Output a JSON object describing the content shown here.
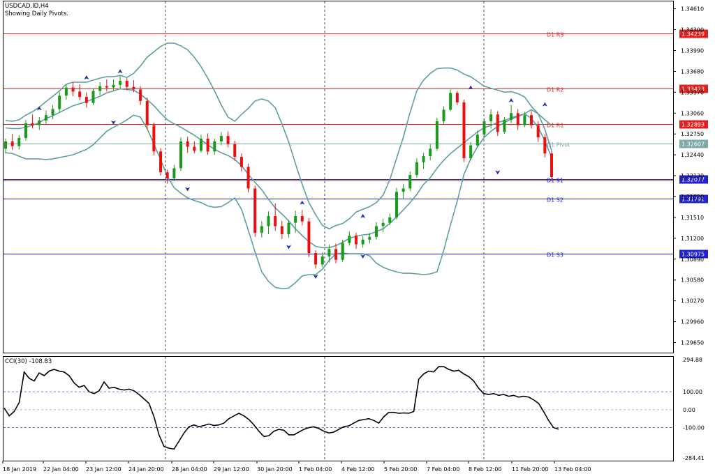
{
  "header": {
    "symbol": "USDCAD.ID,H4",
    "subtitle": "Showing Daily Pivots."
  },
  "indicator": {
    "label": "CCI(30) -108.83"
  },
  "chart_data": [
    {
      "type": "candlestick",
      "y_ticks": [
        "1.34610",
        "1.34300",
        "1.33990",
        "1.33680",
        "1.33370",
        "1.33060",
        "1.32750",
        "1.32440",
        "1.32130",
        "1.31820",
        "1.31510",
        "1.31200",
        "1.30890",
        "1.30580",
        "1.30270",
        "1.29960",
        "1.29650"
      ],
      "ylim": [
        1.295,
        1.3472
      ],
      "x_labels": [
        "18 Jan 2019",
        "22 Jan 04:00",
        "23 Jan 12:00",
        "24 Jan 20:00",
        "28 Jan 04:00",
        "29 Jan 12:00",
        "30 Jan 20:00",
        "1 Feb 04:00",
        "4 Feb 12:00",
        "5 Feb 20:00",
        "7 Feb 04:00",
        "8 Feb 12:00",
        "11 Feb 20:00",
        "13 Feb 04:00"
      ],
      "pivots": [
        {
          "name": "D1 R3",
          "value": "1.34239",
          "color": "#e02020"
        },
        {
          "name": "D1 R2",
          "value": "1.33423",
          "color": "#e02020"
        },
        {
          "name": "D1 R1",
          "value": "1.32893",
          "color": "#e02020"
        },
        {
          "name": "D1 Pivot",
          "value": "1.32607",
          "color": "#7fa9a9"
        },
        {
          "name": "D1 S1",
          "value": "1.32077",
          "color": "#2222cc"
        },
        {
          "name": "D1 S2",
          "value": "1.31791",
          "color": "#2222cc"
        },
        {
          "name": "D1 S3",
          "value": "1.30975",
          "color": "#2222cc"
        }
      ],
      "colors": {
        "up": "#1a9a1a",
        "down": "#e81010",
        "bands": "#5f9ea0",
        "fractal": "#2233aa"
      },
      "candles": [
        [
          1.3253,
          1.3268,
          1.3246,
          1.3264
        ],
        [
          1.3264,
          1.3275,
          1.3251,
          1.3257
        ],
        [
          1.3257,
          1.3273,
          1.3252,
          1.3269
        ],
        [
          1.3269,
          1.3296,
          1.3265,
          1.3291
        ],
        [
          1.3291,
          1.3304,
          1.3283,
          1.3288
        ],
        [
          1.3288,
          1.33,
          1.3281,
          1.3295
        ],
        [
          1.3295,
          1.331,
          1.329,
          1.3303
        ],
        [
          1.3303,
          1.3318,
          1.3297,
          1.3312
        ],
        [
          1.3312,
          1.3337,
          1.3308,
          1.3332
        ],
        [
          1.3332,
          1.3349,
          1.3326,
          1.3344
        ],
        [
          1.3344,
          1.3352,
          1.3331,
          1.3338
        ],
        [
          1.3338,
          1.3349,
          1.3325,
          1.333
        ],
        [
          1.333,
          1.3337,
          1.3314,
          1.3321
        ],
        [
          1.3321,
          1.3343,
          1.3318,
          1.3339
        ],
        [
          1.3339,
          1.3352,
          1.3333,
          1.3346
        ],
        [
          1.3346,
          1.3356,
          1.3338,
          1.3344
        ],
        [
          1.3344,
          1.3356,
          1.334,
          1.3348
        ],
        [
          1.3348,
          1.3361,
          1.3342,
          1.3354
        ],
        [
          1.3354,
          1.3358,
          1.334,
          1.3345
        ],
        [
          1.3345,
          1.3355,
          1.3337,
          1.3341
        ],
        [
          1.3341,
          1.3346,
          1.3318,
          1.3324
        ],
        [
          1.3324,
          1.3329,
          1.3282,
          1.3288
        ],
        [
          1.3288,
          1.3292,
          1.3243,
          1.3249
        ],
        [
          1.3249,
          1.3254,
          1.3213,
          1.3218
        ],
        [
          1.3218,
          1.3222,
          1.3201,
          1.3209
        ],
        [
          1.3209,
          1.3229,
          1.3205,
          1.3224
        ],
        [
          1.3224,
          1.327,
          1.322,
          1.3264
        ],
        [
          1.3264,
          1.3271,
          1.3247,
          1.3256
        ],
        [
          1.3256,
          1.3264,
          1.3246,
          1.325
        ],
        [
          1.325,
          1.3274,
          1.3247,
          1.3268
        ],
        [
          1.3268,
          1.3276,
          1.3244,
          1.3249
        ],
        [
          1.3249,
          1.3268,
          1.3244,
          1.3264
        ],
        [
          1.3264,
          1.3278,
          1.3258,
          1.3272
        ],
        [
          1.3272,
          1.3279,
          1.3255,
          1.326
        ],
        [
          1.326,
          1.3265,
          1.3235,
          1.3241
        ],
        [
          1.3241,
          1.3246,
          1.3219,
          1.3226
        ],
        [
          1.3226,
          1.3231,
          1.3188,
          1.3194
        ],
        [
          1.3194,
          1.3198,
          1.3122,
          1.3128
        ],
        [
          1.3128,
          1.3145,
          1.3121,
          1.3138
        ],
        [
          1.3138,
          1.316,
          1.3126,
          1.3153
        ],
        [
          1.3153,
          1.3172,
          1.3131,
          1.3138
        ],
        [
          1.3138,
          1.3146,
          1.3119,
          1.3126
        ],
        [
          1.3126,
          1.3147,
          1.3121,
          1.3143
        ],
        [
          1.3143,
          1.3161,
          1.3128,
          1.3153
        ],
        [
          1.3153,
          1.3162,
          1.3139,
          1.3145
        ],
        [
          1.3145,
          1.315,
          1.3092,
          1.3098
        ],
        [
          1.3098,
          1.3102,
          1.3075,
          1.3081
        ],
        [
          1.3081,
          1.3099,
          1.3077,
          1.3093
        ],
        [
          1.3093,
          1.3111,
          1.3084,
          1.3104
        ],
        [
          1.3104,
          1.3112,
          1.3083,
          1.3088
        ],
        [
          1.3088,
          1.3118,
          1.3085,
          1.3113
        ],
        [
          1.3113,
          1.313,
          1.3109,
          1.3124
        ],
        [
          1.3124,
          1.3128,
          1.3104,
          1.3111
        ],
        [
          1.3111,
          1.3123,
          1.3106,
          1.3118
        ],
        [
          1.3118,
          1.3128,
          1.3112,
          1.3122
        ],
        [
          1.3122,
          1.3144,
          1.3118,
          1.3138
        ],
        [
          1.3138,
          1.3149,
          1.3129,
          1.3143
        ],
        [
          1.3143,
          1.3157,
          1.314,
          1.3151
        ],
        [
          1.3151,
          1.3195,
          1.3148,
          1.3189
        ],
        [
          1.3189,
          1.3201,
          1.3178,
          1.3194
        ],
        [
          1.3194,
          1.3219,
          1.319,
          1.3214
        ],
        [
          1.3214,
          1.3239,
          1.321,
          1.3233
        ],
        [
          1.3233,
          1.3247,
          1.3223,
          1.3242
        ],
        [
          1.3242,
          1.326,
          1.3236,
          1.3253
        ],
        [
          1.3253,
          1.3299,
          1.325,
          1.3294
        ],
        [
          1.3294,
          1.3316,
          1.329,
          1.3311
        ],
        [
          1.3311,
          1.3341,
          1.3309,
          1.3336
        ],
        [
          1.3336,
          1.3339,
          1.3318,
          1.3322
        ],
        [
          1.3322,
          1.3326,
          1.3233,
          1.3239
        ],
        [
          1.3239,
          1.3263,
          1.3236,
          1.3258
        ],
        [
          1.3258,
          1.328,
          1.3255,
          1.3274
        ],
        [
          1.3274,
          1.3298,
          1.3271,
          1.3294
        ],
        [
          1.3294,
          1.3312,
          1.3283,
          1.3304
        ],
        [
          1.3304,
          1.3309,
          1.3272,
          1.3278
        ],
        [
          1.3278,
          1.33,
          1.3275,
          1.3296
        ],
        [
          1.3296,
          1.3318,
          1.3291,
          1.3306
        ],
        [
          1.3306,
          1.3312,
          1.3281,
          1.3288
        ],
        [
          1.3288,
          1.3308,
          1.3285,
          1.3303
        ],
        [
          1.3303,
          1.3309,
          1.3283,
          1.3288
        ],
        [
          1.3288,
          1.3294,
          1.3263,
          1.327
        ],
        [
          1.327,
          1.3275,
          1.324,
          1.3246
        ],
        [
          1.3246,
          1.325,
          1.3206,
          1.3211
        ]
      ],
      "upper_band": [
        1.3295,
        1.3294,
        1.3296,
        1.3303,
        1.3308,
        1.3315,
        1.3323,
        1.3331,
        1.3339,
        1.3349,
        1.3352,
        1.3352,
        1.3352,
        1.3355,
        1.3358,
        1.336,
        1.336,
        1.3362,
        1.3359,
        1.3365,
        1.3376,
        1.3389,
        1.3397,
        1.3405,
        1.341,
        1.341,
        1.3406,
        1.34,
        1.3389,
        1.3375,
        1.3358,
        1.3339,
        1.3318,
        1.33,
        1.3294,
        1.3304,
        1.3313,
        1.3324,
        1.3327,
        1.3324,
        1.3314,
        1.329,
        1.3263,
        1.3231,
        1.32,
        1.3173,
        1.3155,
        1.3139,
        1.3134,
        1.3139,
        1.3142,
        1.3149,
        1.3159,
        1.3163,
        1.3167,
        1.3173,
        1.3184,
        1.3207,
        1.3239,
        1.327,
        1.3307,
        1.3339,
        1.3355,
        1.3365,
        1.3372,
        1.3373,
        1.3373,
        1.337,
        1.3364,
        1.336,
        1.3353,
        1.3346,
        1.3343,
        1.334,
        1.3337,
        1.3338,
        1.3335,
        1.333,
        1.3316,
        1.3305,
        1.3296,
        1.3288
      ],
      "middle_band": [
        1.3284,
        1.3283,
        1.3283,
        1.3285,
        1.3288,
        1.3292,
        1.3298,
        1.3302,
        1.3307,
        1.3312,
        1.3317,
        1.332,
        1.3323,
        1.3327,
        1.3331,
        1.3336,
        1.3339,
        1.3342,
        1.3341,
        1.334,
        1.3334,
        1.3326,
        1.3317,
        1.3306,
        1.3296,
        1.329,
        1.3285,
        1.3279,
        1.3273,
        1.3266,
        1.3259,
        1.3252,
        1.3247,
        1.3243,
        1.3237,
        1.3228,
        1.3215,
        1.3203,
        1.3192,
        1.3178,
        1.3165,
        1.3156,
        1.3146,
        1.3134,
        1.3124,
        1.3115,
        1.3108,
        1.3106,
        1.3106,
        1.3109,
        1.3114,
        1.312,
        1.3123,
        1.3125,
        1.3126,
        1.313,
        1.3134,
        1.3142,
        1.3152,
        1.3162,
        1.3173,
        1.3185,
        1.32,
        1.321,
        1.3224,
        1.3236,
        1.3246,
        1.3254,
        1.3262,
        1.327,
        1.3278,
        1.3284,
        1.3288,
        1.3292,
        1.3295,
        1.3299,
        1.3302,
        1.3305,
        1.3298,
        1.3285,
        1.3265,
        1.324
      ],
      "lower_band": [
        1.3247,
        1.3246,
        1.3242,
        1.3238,
        1.3238,
        1.3238,
        1.3237,
        1.3238,
        1.324,
        1.3242,
        1.3244,
        1.3248,
        1.3252,
        1.3259,
        1.3269,
        1.3279,
        1.3285,
        1.329,
        1.3296,
        1.3303,
        1.33,
        1.3283,
        1.326,
        1.3237,
        1.3212,
        1.3195,
        1.3187,
        1.318,
        1.3176,
        1.3173,
        1.3168,
        1.3166,
        1.3167,
        1.3173,
        1.318,
        1.3163,
        1.3132,
        1.31,
        1.307,
        1.3056,
        1.3047,
        1.3045,
        1.3046,
        1.3054,
        1.3064,
        1.3066,
        1.3066,
        1.3074,
        1.3087,
        1.3097,
        1.3098,
        1.3097,
        1.3097,
        1.3097,
        1.3094,
        1.3083,
        1.3077,
        1.3073,
        1.307,
        1.3068,
        1.3068,
        1.3067,
        1.3066,
        1.3067,
        1.307,
        1.3102,
        1.314,
        1.3175,
        1.3215,
        1.3238,
        1.3256,
        1.327,
        1.3279,
        1.3286,
        1.3292,
        1.3297,
        1.3301,
        1.3305,
        1.3311,
        1.3305,
        1.3282,
        1.325
      ],
      "fractals_up": [
        [
          5,
          1.331
        ],
        [
          12,
          1.3356
        ],
        [
          17,
          1.3365
        ],
        [
          44,
          1.317
        ],
        [
          53,
          1.315
        ],
        [
          69,
          1.3341
        ],
        [
          75,
          1.3322
        ],
        [
          80,
          1.3316
        ]
      ],
      "fractals_down": [
        [
          16,
          1.3295
        ],
        [
          27,
          1.3196
        ],
        [
          42,
          1.311
        ],
        [
          46,
          1.3066
        ],
        [
          53,
          1.3096
        ],
        [
          73,
          1.3221
        ]
      ]
    },
    {
      "type": "line",
      "name": "CCI(30)",
      "ylim": [
        -284.41,
        294.88
      ],
      "y_ticks": [
        "294.88",
        "100.00",
        "0.00",
        "-100.00",
        "-284.41"
      ],
      "levels": [
        100,
        0,
        -100
      ],
      "values": [
        10,
        -35,
        -10,
        40,
        210,
        175,
        160,
        205,
        190,
        215,
        225,
        215,
        210,
        190,
        150,
        125,
        135,
        100,
        90,
        105,
        155,
        120,
        125,
        115,
        110,
        115,
        105,
        85,
        60,
        35,
        -40,
        -140,
        -205,
        -215,
        -220,
        -175,
        -130,
        -95,
        -85,
        -95,
        -88,
        -80,
        -88,
        -85,
        -75,
        -50,
        -35,
        -20,
        -35,
        -55,
        -85,
        -120,
        -150,
        -145,
        -120,
        -110,
        -115,
        -140,
        -140,
        -125,
        -110,
        -100,
        -95,
        -105,
        -120,
        -130,
        -125,
        -110,
        -95,
        -90,
        -75,
        -60,
        -55,
        -50,
        -60,
        -75,
        -40,
        -15,
        -15,
        -20,
        -18,
        -20,
        -10,
        170,
        200,
        215,
        210,
        240,
        240,
        225,
        215,
        220,
        200,
        185,
        160,
        120,
        90,
        85,
        90,
        80,
        85,
        75,
        80,
        70,
        75,
        70,
        55,
        35,
        -10,
        -60,
        -100,
        -108.83
      ],
      "current": "-108.83"
    }
  ]
}
